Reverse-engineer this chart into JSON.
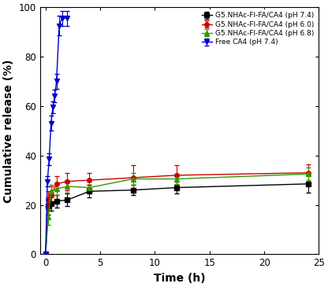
{
  "title": "",
  "xlabel": "Time (h)",
  "ylabel": "Cumulative release (%)",
  "xlim": [
    -0.5,
    25
  ],
  "ylim": [
    0,
    100
  ],
  "xticks": [
    0,
    5,
    10,
    15,
    20,
    25
  ],
  "yticks": [
    0,
    20,
    40,
    60,
    80,
    100
  ],
  "series": [
    {
      "label": "G5.NHAc-FI-FA/CA4 (pH 7.4)",
      "color": "#000000",
      "marker": "s",
      "x": [
        0,
        0.25,
        0.5,
        1,
        2,
        4,
        8,
        12,
        24
      ],
      "y": [
        0,
        19.5,
        20.5,
        21.5,
        22.0,
        25.5,
        26.0,
        27.0,
        28.5
      ],
      "yerr": [
        0,
        3.5,
        3.0,
        2.5,
        2.5,
        2.5,
        2.0,
        2.5,
        3.5
      ]
    },
    {
      "label": "G5.NHAc-FI-FA/CA4 (pH 6.0)",
      "color": "#cc0000",
      "marker": "o",
      "x": [
        0,
        0.25,
        0.5,
        1,
        2,
        4,
        8,
        12,
        24
      ],
      "y": [
        0,
        22.0,
        24.0,
        28.5,
        29.5,
        30.0,
        31.0,
        32.0,
        33.0
      ],
      "yerr": [
        0,
        3.5,
        3.5,
        3.0,
        3.5,
        3.0,
        5.0,
        4.0,
        3.5
      ]
    },
    {
      "label": "G5.NHAc-FI-FA/CA4 (pH 6.8)",
      "color": "#339900",
      "marker": "^",
      "x": [
        0,
        0.25,
        0.5,
        1,
        2,
        4,
        8,
        12,
        24
      ],
      "y": [
        0,
        15.0,
        25.5,
        26.5,
        27.5,
        27.0,
        30.5,
        30.5,
        32.5
      ],
      "yerr": [
        0,
        3.0,
        2.5,
        2.5,
        2.5,
        2.5,
        2.5,
        2.0,
        2.5
      ]
    },
    {
      "label": "Free CA4 (pH 7.4)",
      "color": "#0000cc",
      "marker": "v",
      "x": [
        0,
        0.167,
        0.333,
        0.5,
        0.667,
        0.833,
        1.0,
        1.25,
        1.5,
        2.0
      ],
      "y": [
        0,
        29.5,
        38.5,
        53.0,
        59.5,
        64.0,
        70.0,
        92.5,
        95.5,
        95.5
      ],
      "yerr": [
        0,
        2.0,
        2.5,
        3.0,
        2.5,
        2.5,
        3.0,
        4.0,
        3.0,
        3.0
      ]
    }
  ],
  "figsize": [
    4.16,
    3.65
  ],
  "dpi": 100,
  "background_color": "#ffffff",
  "legend_fontsize": 6.5,
  "axis_label_fontsize": 10,
  "tick_fontsize": 8.5,
  "markersize": 4,
  "linewidth": 1.0,
  "capsize": 2.0,
  "elinewidth": 0.8
}
